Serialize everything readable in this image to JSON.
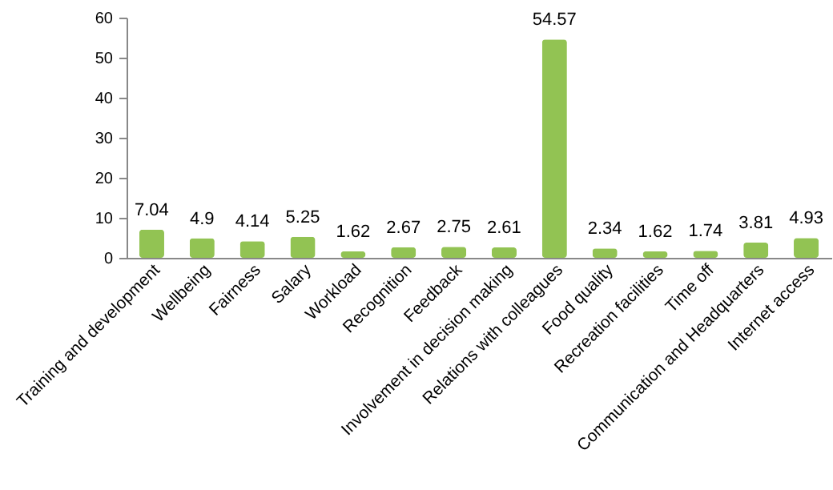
{
  "chart_data": {
    "type": "bar",
    "categories": [
      "Training and development",
      "Wellbeing",
      "Fairness",
      "Salary",
      "Workload",
      "Recognition",
      "Feedback",
      "Involvement in decision making",
      "Relations with colleagues",
      "Food quality",
      "Recreation facilities",
      "Time off",
      "Communication and Headquarters",
      "Internet access"
    ],
    "values": [
      7.04,
      4.9,
      4.14,
      5.25,
      1.62,
      2.67,
      2.75,
      2.61,
      54.57,
      2.34,
      1.62,
      1.74,
      3.81,
      4.93
    ],
    "color": "#92c353",
    "ylim": [
      0,
      60
    ],
    "yticks": [
      0,
      10,
      20,
      30,
      40,
      50,
      60
    ],
    "data_labels": true
  }
}
